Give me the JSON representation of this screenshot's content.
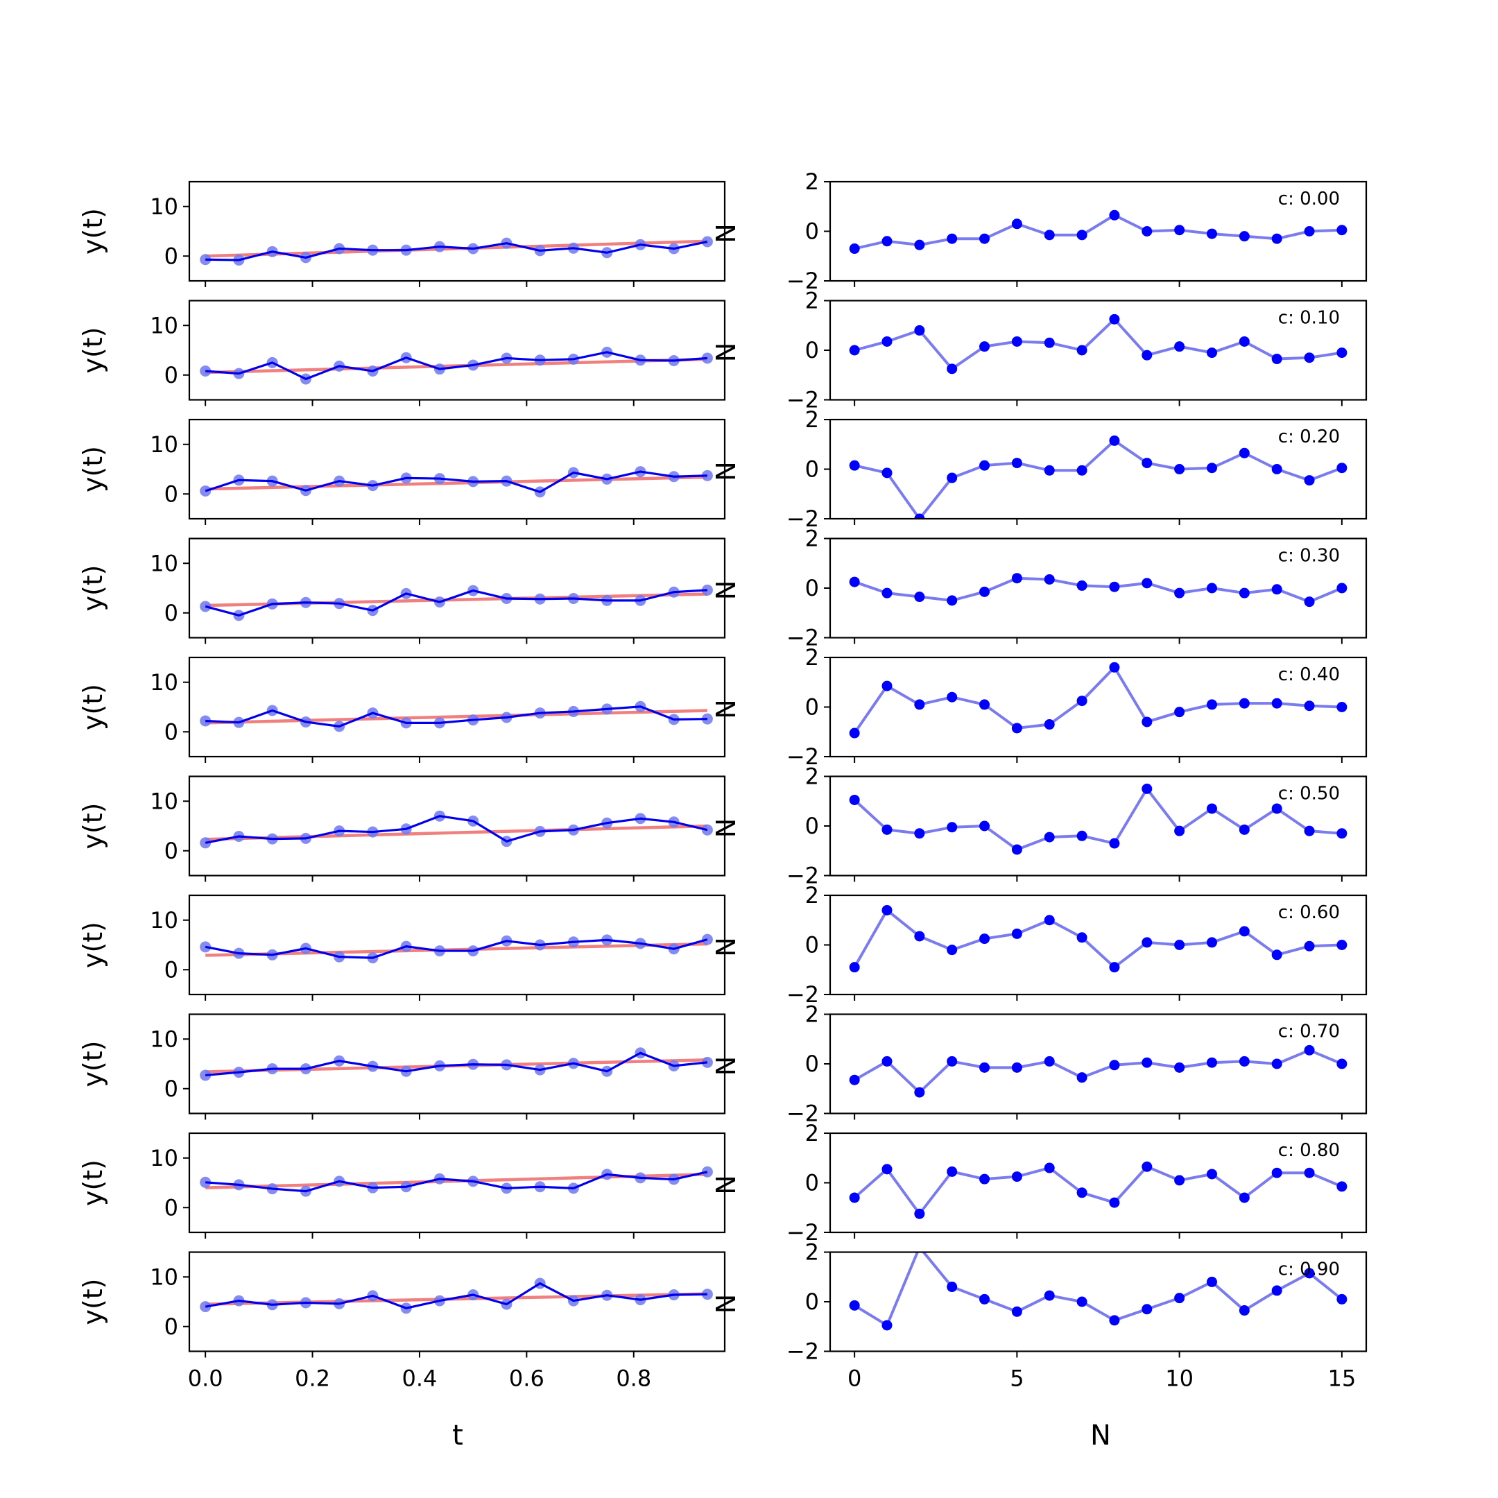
{
  "chart_data": {
    "type": "line",
    "left_column": {
      "xlabel": "t",
      "ylabel": "y(t)",
      "xlim": [
        -0.03,
        0.97
      ],
      "ylim": [
        -5,
        15
      ],
      "xticks": [
        0.0,
        0.2,
        0.4,
        0.6,
        0.8
      ],
      "xtick_labels": [
        "0.0",
        "0.2",
        "0.4",
        "0.6",
        "0.8"
      ],
      "yticks": [
        0,
        10
      ],
      "ytick_labels": [
        "0",
        "10"
      ],
      "t": [
        0.0,
        0.0625,
        0.125,
        0.1875,
        0.25,
        0.3125,
        0.375,
        0.4375,
        0.5,
        0.5625,
        0.625,
        0.6875,
        0.75,
        0.8125,
        0.875,
        0.9375
      ]
    },
    "right_column": {
      "xlabel": "N",
      "ylabel": "N",
      "xlim": [
        -0.75,
        15.75
      ],
      "ylim": [
        -2,
        2
      ],
      "xticks": [
        0,
        5,
        10,
        15
      ],
      "xtick_labels": [
        "0",
        "5",
        "10",
        "15"
      ],
      "yticks": [
        -2,
        0,
        2
      ],
      "ytick_labels": [
        "−2",
        "0",
        "2"
      ],
      "N": [
        0,
        1,
        2,
        3,
        4,
        5,
        6,
        7,
        8,
        9,
        10,
        11,
        12,
        13,
        14,
        15
      ]
    },
    "rows": [
      {
        "annotation": "c: 0.00",
        "fit": [
          0.0,
          3.0
        ],
        "y": [
          -0.7,
          -0.8,
          0.9,
          -0.3,
          1.5,
          1.2,
          1.2,
          1.9,
          1.5,
          2.6,
          1.1,
          1.6,
          0.7,
          2.3,
          1.5,
          2.9
        ],
        "noise": [
          -0.7,
          -0.4,
          -0.55,
          -0.3,
          -0.3,
          0.3,
          -0.15,
          -0.15,
          0.65,
          0.0,
          0.05,
          -0.1,
          -0.2,
          -0.3,
          0.0,
          0.05
        ]
      },
      {
        "annotation": "c: 0.10",
        "fit": [
          0.5,
          3.2
        ],
        "y": [
          0.8,
          0.3,
          2.5,
          -0.8,
          1.8,
          0.8,
          3.5,
          1.2,
          2.0,
          3.4,
          3.0,
          3.2,
          4.6,
          3.0,
          2.9,
          3.4
        ],
        "noise": [
          0.0,
          0.35,
          0.8,
          -0.75,
          0.15,
          0.35,
          0.3,
          0.0,
          1.25,
          -0.2,
          0.15,
          -0.1,
          0.35,
          -0.35,
          -0.3,
          -0.1
        ]
      },
      {
        "annotation": "c: 0.20",
        "fit": [
          1.0,
          3.4
        ],
        "y": [
          0.6,
          2.8,
          2.6,
          0.7,
          2.6,
          1.7,
          3.2,
          3.1,
          2.5,
          2.6,
          0.4,
          4.3,
          3.0,
          4.5,
          3.5,
          3.7
        ],
        "noise": [
          0.15,
          -0.15,
          -2.0,
          -0.35,
          0.15,
          0.25,
          -0.05,
          -0.05,
          1.15,
          0.25,
          0.0,
          0.05,
          0.65,
          0.0,
          -0.45,
          0.05
        ]
      },
      {
        "annotation": "c: 0.30",
        "fit": [
          1.5,
          3.8
        ],
        "y": [
          1.3,
          -0.5,
          1.8,
          2.1,
          1.9,
          0.5,
          3.9,
          2.2,
          4.5,
          2.9,
          2.8,
          2.9,
          2.5,
          2.5,
          4.2,
          4.6
        ],
        "noise": [
          0.25,
          -0.2,
          -0.35,
          -0.5,
          -0.15,
          0.4,
          0.35,
          0.1,
          0.05,
          0.2,
          -0.2,
          0.0,
          -0.2,
          -0.05,
          -0.55,
          0.0
        ]
      },
      {
        "annotation": "c: 0.40",
        "fit": [
          1.8,
          4.3
        ],
        "y": [
          2.2,
          1.9,
          4.3,
          2.0,
          1.1,
          3.8,
          1.8,
          1.8,
          2.4,
          2.9,
          3.8,
          4.1,
          4.6,
          5.1,
          2.5,
          2.6
        ],
        "noise": [
          -1.05,
          0.85,
          0.1,
          0.4,
          0.1,
          -0.85,
          -0.7,
          0.25,
          1.6,
          -0.6,
          -0.2,
          0.1,
          0.15,
          0.15,
          0.05,
          0.0
        ]
      },
      {
        "annotation": "c: 0.50",
        "fit": [
          2.3,
          5.0
        ],
        "y": [
          1.6,
          2.9,
          2.4,
          2.5,
          4.0,
          3.8,
          4.4,
          7.0,
          6.0,
          1.9,
          3.9,
          4.2,
          5.6,
          6.5,
          5.8,
          4.2
        ],
        "noise": [
          1.05,
          -0.15,
          -0.3,
          -0.05,
          0.0,
          -0.95,
          -0.45,
          -0.4,
          -0.7,
          1.5,
          -0.2,
          0.7,
          -0.15,
          0.7,
          -0.2,
          -0.3
        ]
      },
      {
        "annotation": "c: 0.60",
        "fit": [
          2.9,
          5.2
        ],
        "y": [
          4.6,
          3.3,
          3.0,
          4.3,
          2.6,
          2.4,
          4.7,
          3.8,
          3.8,
          5.8,
          5.0,
          5.6,
          6.0,
          5.3,
          4.2,
          6.1
        ],
        "noise": [
          -0.9,
          1.4,
          0.35,
          -0.2,
          0.25,
          0.45,
          1.0,
          0.3,
          -0.9,
          0.1,
          0.0,
          0.1,
          0.55,
          -0.4,
          -0.05,
          0.0
        ]
      },
      {
        "annotation": "c: 0.70",
        "fit": [
          3.4,
          5.8
        ],
        "y": [
          2.7,
          3.3,
          4.0,
          4.0,
          5.6,
          4.5,
          3.5,
          4.6,
          4.9,
          4.8,
          3.8,
          5.1,
          3.5,
          7.2,
          4.6,
          5.3
        ],
        "noise": [
          -0.65,
          0.1,
          -1.15,
          0.1,
          -0.15,
          -0.15,
          0.1,
          -0.55,
          -0.05,
          0.05,
          -0.15,
          0.05,
          0.1,
          0.0,
          0.55,
          0.0
        ]
      },
      {
        "annotation": "c: 0.80",
        "fit": [
          4.0,
          6.7
        ],
        "y": [
          5.1,
          4.6,
          3.8,
          3.3,
          5.3,
          4.0,
          4.2,
          5.8,
          5.3,
          3.9,
          4.2,
          3.9,
          6.7,
          6.0,
          5.7,
          7.2
        ],
        "noise": [
          -0.6,
          0.55,
          -1.25,
          0.45,
          0.15,
          0.25,
          0.6,
          -0.4,
          -0.8,
          0.65,
          0.1,
          0.35,
          -0.6,
          0.4,
          0.4,
          -0.15
        ]
      },
      {
        "annotation": "c: 0.90",
        "fit": [
          4.5,
          6.6
        ],
        "y": [
          4.0,
          5.2,
          4.4,
          4.8,
          4.6,
          6.2,
          3.7,
          5.2,
          6.4,
          4.5,
          8.7,
          5.2,
          6.3,
          5.4,
          6.4,
          6.5
        ],
        "noise": [
          -0.15,
          -0.95,
          2.2,
          0.6,
          0.1,
          -0.4,
          0.25,
          0.0,
          -0.75,
          -0.3,
          0.15,
          0.8,
          -0.35,
          0.45,
          1.15,
          0.1
        ]
      }
    ],
    "colors": {
      "fit": "#f08080",
      "series": "#0000ee",
      "markers_left": "#6f78ee",
      "noise_line": "#7b7bf0",
      "noise_markers": "#0000ff"
    }
  }
}
